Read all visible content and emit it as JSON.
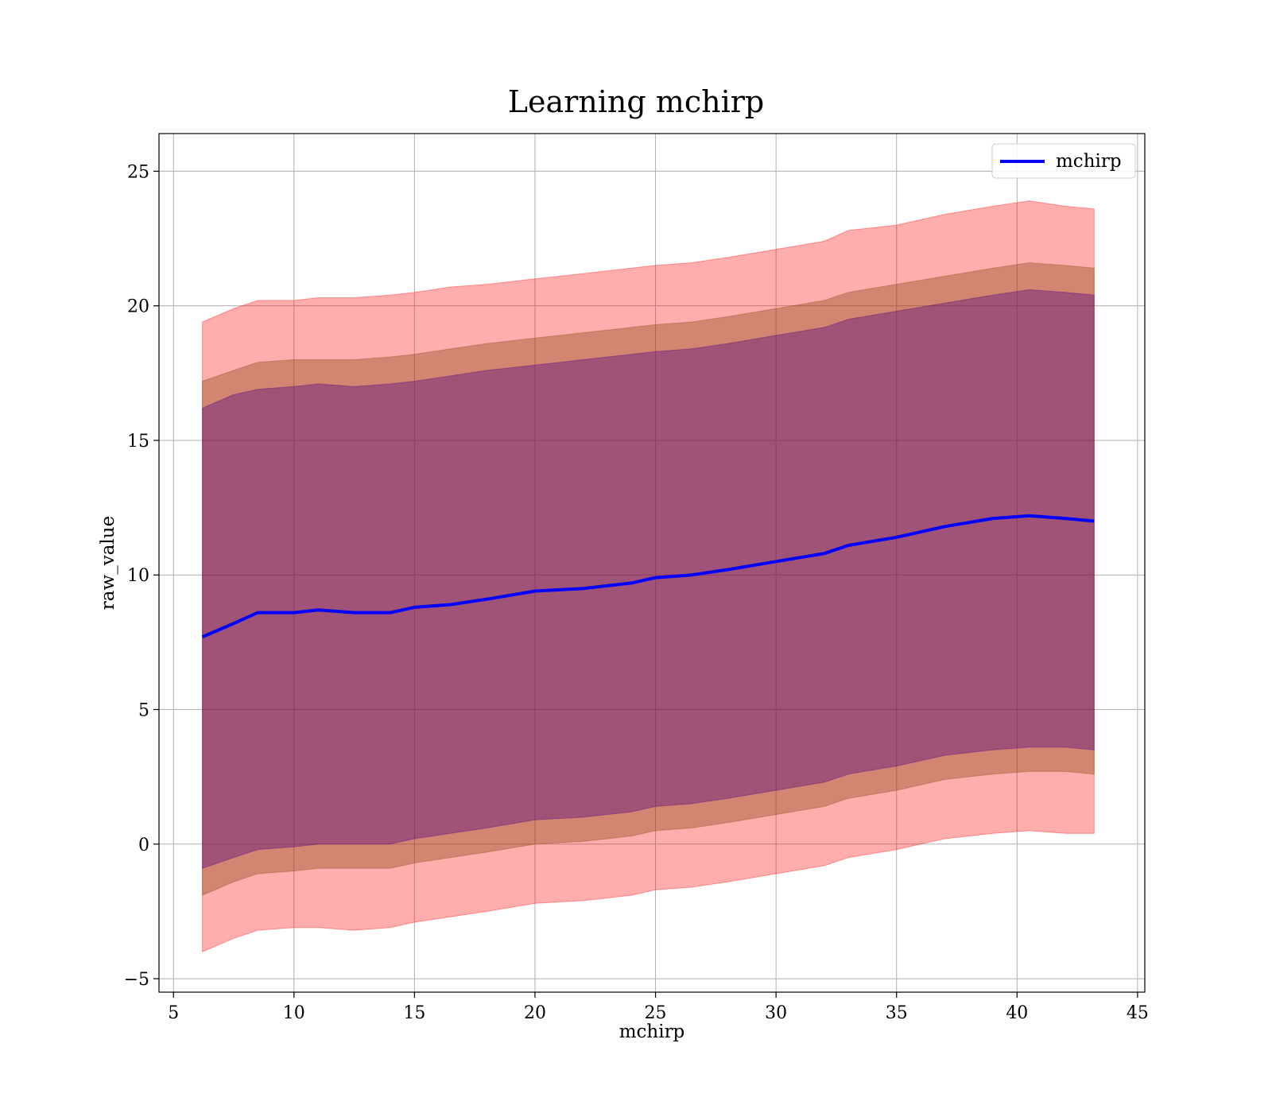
{
  "chart_data": {
    "type": "area",
    "title": "Learning mchirp",
    "xlabel": "mchirp",
    "ylabel": "raw_value",
    "xlim": [
      4.4,
      45.3
    ],
    "ylim": [
      -5.5,
      26.4
    ],
    "xticks": [
      5,
      10,
      15,
      20,
      25,
      30,
      35,
      40,
      45
    ],
    "yticks": [
      -5,
      0,
      5,
      10,
      15,
      20,
      25
    ],
    "xtick_labels": [
      "5",
      "10",
      "15",
      "20",
      "25",
      "30",
      "35",
      "40",
      "45"
    ],
    "ytick_labels": [
      "−5",
      "0",
      "5",
      "10",
      "15",
      "20",
      "25"
    ],
    "grid": true,
    "legend_position": "top-right",
    "colors": {
      "line": "#0000ff",
      "band_outer": "#ff0000",
      "band_middle": "#8b4513",
      "band_inner": "#4b0082"
    },
    "x": [
      6.2,
      7.5,
      8.5,
      10,
      11,
      12.5,
      14,
      15,
      16.5,
      18,
      20,
      22,
      24,
      25,
      26.5,
      28,
      30,
      32,
      33,
      35,
      37,
      39,
      40.5,
      42,
      43.2
    ],
    "series": [
      {
        "name": "mchirp",
        "kind": "line",
        "values": [
          7.7,
          8.2,
          8.6,
          8.6,
          8.7,
          8.6,
          8.6,
          8.8,
          8.9,
          9.1,
          9.4,
          9.5,
          9.7,
          9.9,
          10.0,
          10.2,
          10.5,
          10.8,
          11.1,
          11.4,
          11.8,
          12.1,
          12.2,
          12.1,
          12.0
        ]
      },
      {
        "kind": "band",
        "level": "outer",
        "upper": [
          19.4,
          19.9,
          20.2,
          20.2,
          20.3,
          20.3,
          20.4,
          20.5,
          20.7,
          20.8,
          21.0,
          21.2,
          21.4,
          21.5,
          21.6,
          21.8,
          22.1,
          22.4,
          22.8,
          23.0,
          23.4,
          23.7,
          23.9,
          23.7,
          23.6
        ],
        "lower": [
          -4.0,
          -3.5,
          -3.2,
          -3.1,
          -3.1,
          -3.2,
          -3.1,
          -2.9,
          -2.7,
          -2.5,
          -2.2,
          -2.1,
          -1.9,
          -1.7,
          -1.6,
          -1.4,
          -1.1,
          -0.8,
          -0.5,
          -0.2,
          0.2,
          0.4,
          0.5,
          0.4,
          0.4
        ]
      },
      {
        "kind": "band",
        "level": "middle",
        "upper": [
          17.2,
          17.6,
          17.9,
          18.0,
          18.0,
          18.0,
          18.1,
          18.2,
          18.4,
          18.6,
          18.8,
          19.0,
          19.2,
          19.3,
          19.4,
          19.6,
          19.9,
          20.2,
          20.5,
          20.8,
          21.1,
          21.4,
          21.6,
          21.5,
          21.4
        ],
        "lower": [
          -1.9,
          -1.4,
          -1.1,
          -1.0,
          -0.9,
          -0.9,
          -0.9,
          -0.7,
          -0.5,
          -0.3,
          0.0,
          0.1,
          0.3,
          0.5,
          0.6,
          0.8,
          1.1,
          1.4,
          1.7,
          2.0,
          2.4,
          2.6,
          2.7,
          2.7,
          2.6
        ]
      },
      {
        "kind": "band",
        "level": "inner",
        "upper": [
          16.2,
          16.7,
          16.9,
          17.0,
          17.1,
          17.0,
          17.1,
          17.2,
          17.4,
          17.6,
          17.8,
          18.0,
          18.2,
          18.3,
          18.4,
          18.6,
          18.9,
          19.2,
          19.5,
          19.8,
          20.1,
          20.4,
          20.6,
          20.5,
          20.4
        ],
        "lower": [
          -0.9,
          -0.5,
          -0.2,
          -0.1,
          0.0,
          0.0,
          0.0,
          0.2,
          0.4,
          0.6,
          0.9,
          1.0,
          1.2,
          1.4,
          1.5,
          1.7,
          2.0,
          2.3,
          2.6,
          2.9,
          3.3,
          3.5,
          3.6,
          3.6,
          3.5
        ]
      }
    ]
  }
}
